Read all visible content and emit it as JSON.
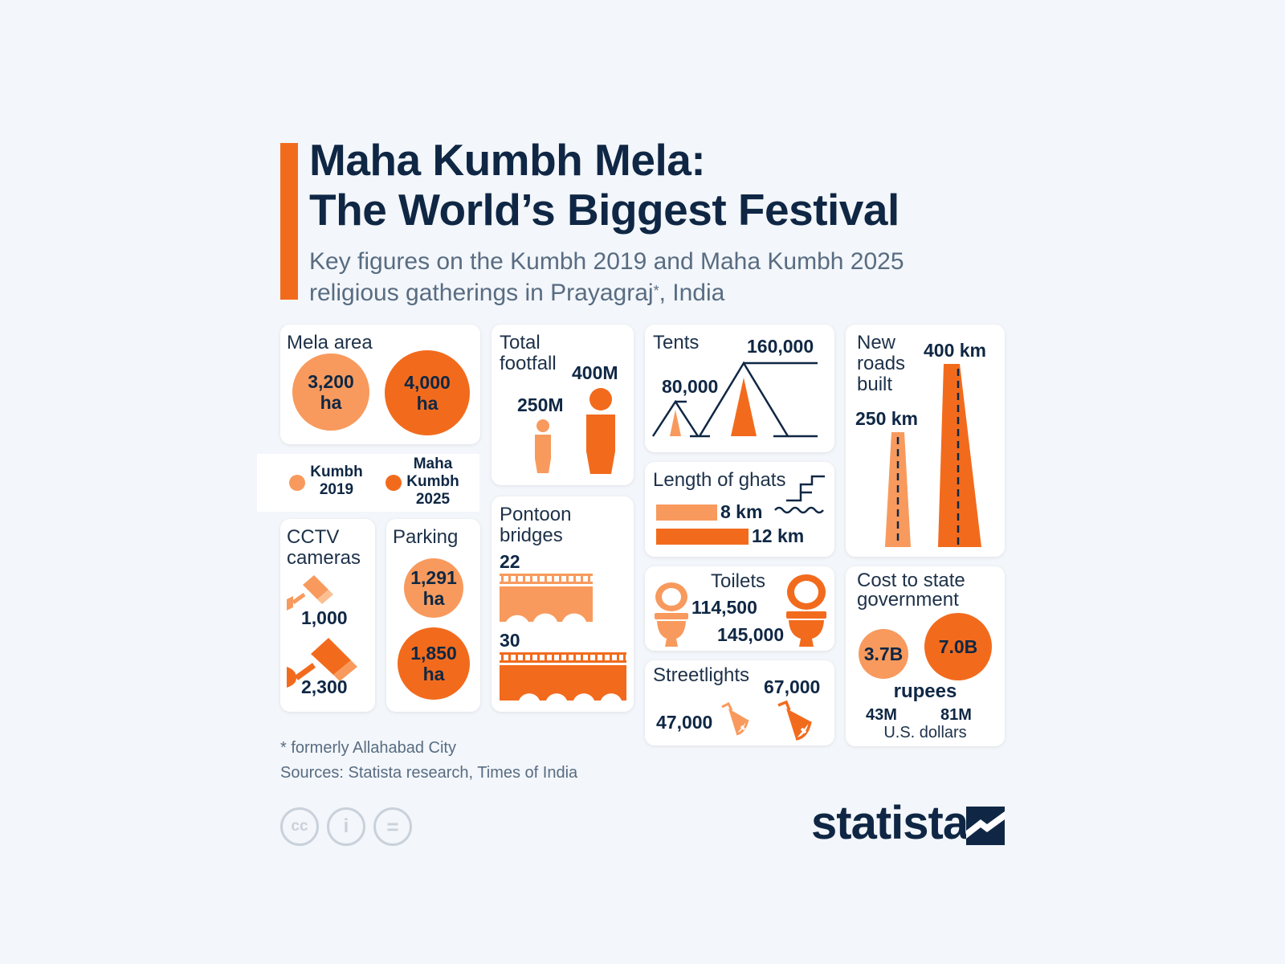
{
  "header": {
    "title_line1": "Maha Kumbh Mela:",
    "title_line2": "The World’s Biggest Festival",
    "subtitle_line1": "Key figures on the Kumbh 2019 and Maha Kumbh 2025",
    "subtitle_line2_main": "religious gatherings in Prayagraj",
    "subtitle_sup": "*",
    "subtitle_line2_end": ", India"
  },
  "colors": {
    "kumbh_2019": "#f89a5d",
    "maha_kumbh_2025": "#f26b1d",
    "navy": "#0f2744",
    "background": "#f3f6fa"
  },
  "legend": {
    "kumbh_line1": "Kumbh",
    "kumbh_line2": "2019",
    "maha_line1": "Maha",
    "maha_line2": "Kumbh",
    "maha_line3": "2025"
  },
  "mela_area": {
    "label": "Mela area",
    "v2019_num": "3,200",
    "v2019_unit": "ha",
    "v2025_num": "4,000",
    "v2025_unit": "ha"
  },
  "footfall": {
    "label_line1": "Total",
    "label_line2": "footfall",
    "v2019": "250M",
    "v2025": "400M",
    "icon": "person-icon"
  },
  "tents": {
    "label": "Tents",
    "v2019": "80,000",
    "v2025": "160,000",
    "icon": "tent-icon"
  },
  "roads": {
    "label_line1": "New",
    "label_line2": "roads",
    "label_line3": "built",
    "v2019": "250 km",
    "v2025": "400 km",
    "icon": "road-icon"
  },
  "ghats": {
    "label": "Length of ghats",
    "v2019": "8 km",
    "v2025": "12 km",
    "icon": "steps-water-icon"
  },
  "cctv": {
    "label_line1": "CCTV",
    "label_line2": "cameras",
    "v2019": "1,000",
    "v2025": "2,300",
    "icon": "cctv-camera-icon"
  },
  "parking": {
    "label": "Parking",
    "v2019_num": "1,291",
    "v2019_unit": "ha",
    "v2025_num": "1,850",
    "v2025_unit": "ha"
  },
  "pontoon": {
    "label_line1": "Pontoon",
    "label_line2": "bridges",
    "v2019": "22",
    "v2025": "30",
    "icon": "bridge-icon"
  },
  "toilets": {
    "label": "Toilets",
    "v2019": "114,500",
    "v2025": "145,000",
    "icon": "toilet-icon"
  },
  "streetlights": {
    "label": "Streetlights",
    "v2019": "47,000",
    "v2025": "67,000",
    "icon": "lamp-icon"
  },
  "cost": {
    "label_line1": "Cost to state",
    "label_line2": "government",
    "v2019_rupees": "3.7B",
    "v2025_rupees": "7.0B",
    "rupees_label": "rupees",
    "v2019_usd": "43M",
    "v2025_usd": "81M",
    "usd_label": "U.S. dollars"
  },
  "footer": {
    "note": "* formerly Allahabad City",
    "sources": "Sources: Statista research, Times of India",
    "cc_icon": "cc",
    "by_icon": "i",
    "nd_icon": "=",
    "brand": "statista"
  }
}
